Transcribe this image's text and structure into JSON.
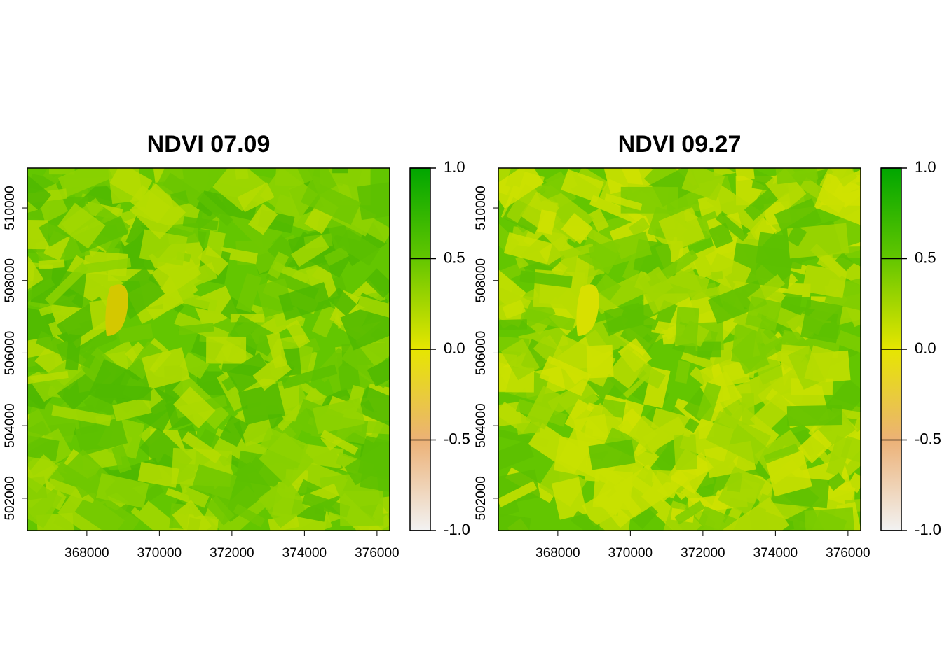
{
  "chart_data": [
    {
      "type": "raster",
      "title": "NDVI 07.09",
      "xlim": [
        366360,
        376350
      ],
      "ylim": [
        501110,
        511100
      ],
      "xticks": [
        368000,
        370000,
        372000,
        374000,
        376000
      ],
      "yticks": [
        502000,
        504000,
        506000,
        508000,
        510000
      ],
      "colorbar": {
        "lim": [
          -1,
          1
        ],
        "ticks": [
          {
            "value": -1,
            "label": "-1.0"
          },
          {
            "value": -0.5,
            "label": "-0.5"
          },
          {
            "value": 0,
            "label": "0.0"
          },
          {
            "value": 0.5,
            "label": "0.5"
          },
          {
            "value": 1,
            "label": "1.0"
          }
        ],
        "colors": [
          "#f2f2f2",
          "#ecb176",
          "#e6e600",
          "#63c600",
          "#00a600"
        ]
      }
    },
    {
      "type": "raster",
      "title": "NDVI 09.27",
      "xlim": [
        366360,
        376350
      ],
      "ylim": [
        501110,
        511100
      ],
      "xticks": [
        368000,
        370000,
        372000,
        374000,
        376000
      ],
      "yticks": [
        502000,
        504000,
        506000,
        508000,
        510000
      ],
      "colorbar": {
        "lim": [
          -1,
          1
        ],
        "ticks": [
          {
            "value": -1,
            "label": "-1.0"
          },
          {
            "value": -0.5,
            "label": "-0.5"
          },
          {
            "value": 0,
            "label": "0.0"
          },
          {
            "value": 0.5,
            "label": "0.5"
          },
          {
            "value": 1,
            "label": "1.0"
          }
        ],
        "colors": [
          "#f2f2f2",
          "#ecb176",
          "#e6e600",
          "#63c600",
          "#00a600"
        ]
      }
    }
  ]
}
